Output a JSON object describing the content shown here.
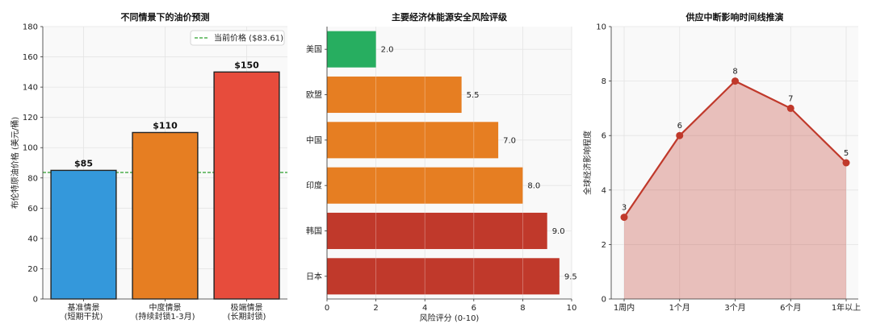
{
  "chart_data": [
    {
      "type": "bar",
      "title": "不同情景下的油价预测",
      "xlabel": "",
      "ylabel": "布伦特原油价格 (美元/桶)",
      "categories": [
        "基准情景\n(短期干扰)",
        "中度情景\n(持续封锁1-3月)",
        "极端情景\n(长期封锁)"
      ],
      "values": [
        85,
        110,
        150
      ],
      "value_labels": [
        "$85",
        "$110",
        "$150"
      ],
      "colors": [
        "#3498db",
        "#e67e22",
        "#e74c3c"
      ],
      "ylim": [
        0,
        180
      ],
      "yticks": [
        0,
        20,
        40,
        60,
        80,
        100,
        120,
        140,
        160,
        180
      ],
      "reference_line": {
        "value": 83.61,
        "label": "当前价格 ($83.61)",
        "color": "#2ca02c"
      },
      "legend": "top-right",
      "grid": true
    },
    {
      "type": "bar",
      "orientation": "horizontal",
      "title": "主要经济体能源安全风险评级",
      "xlabel": "风险评分 (0-10)",
      "ylabel": "",
      "categories": [
        "美国",
        "欧盟",
        "中国",
        "印度",
        "韩国",
        "日本"
      ],
      "values": [
        2.0,
        5.5,
        7.0,
        8.0,
        9.0,
        9.5
      ],
      "value_labels": [
        "2.0",
        "5.5",
        "7.0",
        "8.0",
        "9.0",
        "9.5"
      ],
      "colors": [
        "#27ae60",
        "#e67e22",
        "#e67e22",
        "#e67e22",
        "#c0392b",
        "#c0392b"
      ],
      "xlim": [
        0,
        10
      ],
      "xticks": [
        0,
        2,
        4,
        6,
        8,
        10
      ],
      "grid": true
    },
    {
      "type": "area",
      "title": "供应中断影响时间线推演",
      "xlabel": "",
      "ylabel": "全球经济影响程度",
      "categories": [
        "1周内",
        "1个月",
        "3个月",
        "6个月",
        "1年以上"
      ],
      "values": [
        3,
        6,
        8,
        7,
        5
      ],
      "value_labels": [
        "3",
        "6",
        "8",
        "7",
        "5"
      ],
      "color": "#c0392b",
      "ylim": [
        0,
        10
      ],
      "yticks": [
        0,
        2,
        4,
        6,
        8,
        10
      ],
      "grid": true
    }
  ]
}
